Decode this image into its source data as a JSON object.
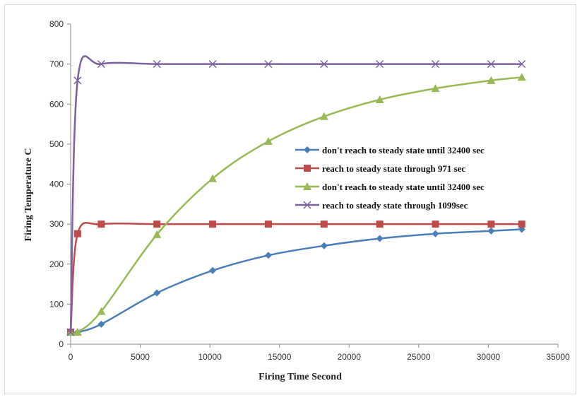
{
  "chart_data": {
    "type": "line",
    "title": "",
    "xlabel": "Firing Time Second",
    "ylabel": "Firing Temperature C",
    "xlim": [
      0,
      35000
    ],
    "ylim": [
      0,
      800
    ],
    "xticks": [
      0,
      5000,
      10000,
      15000,
      20000,
      25000,
      30000,
      35000
    ],
    "yticks": [
      0,
      100,
      200,
      300,
      400,
      500,
      600,
      700,
      800
    ],
    "grid": false,
    "legend_position": "center-right",
    "series": [
      {
        "name": "don't reach to steady state until 32400 sec",
        "color": "#4a7ebb",
        "marker": "diamond",
        "x": [
          0,
          500,
          2200,
          6200,
          10200,
          14200,
          18200,
          22200,
          26200,
          30200,
          32400
        ],
        "y": [
          30,
          30,
          50,
          128,
          184,
          222,
          246,
          264,
          276,
          283,
          287
        ]
      },
      {
        "name": "reach to steady state through 971 sec",
        "color": "#be4b48",
        "marker": "square",
        "x": [
          0,
          500,
          2200,
          6200,
          10200,
          14200,
          18200,
          22200,
          26200,
          30200,
          32400
        ],
        "y": [
          30,
          276,
          300,
          300,
          300,
          300,
          300,
          300,
          300,
          300,
          300
        ]
      },
      {
        "name": "don't reach to steady state until 32400 sec",
        "color": "#98b954",
        "marker": "triangle",
        "x": [
          0,
          500,
          2200,
          6200,
          10200,
          14200,
          18200,
          22200,
          26200,
          30200,
          32400
        ],
        "y": [
          30,
          30,
          82,
          274,
          414,
          507,
          569,
          611,
          639,
          659,
          667
        ]
      },
      {
        "name": "reach to steady state through 1099sec",
        "color": "#7d60a0",
        "marker": "x",
        "x": [
          0,
          500,
          2200,
          6200,
          10200,
          14200,
          18200,
          22200,
          26200,
          30200,
          32400
        ],
        "y": [
          30,
          659,
          700,
          700,
          700,
          700,
          700,
          700,
          700,
          700,
          700
        ]
      }
    ]
  }
}
